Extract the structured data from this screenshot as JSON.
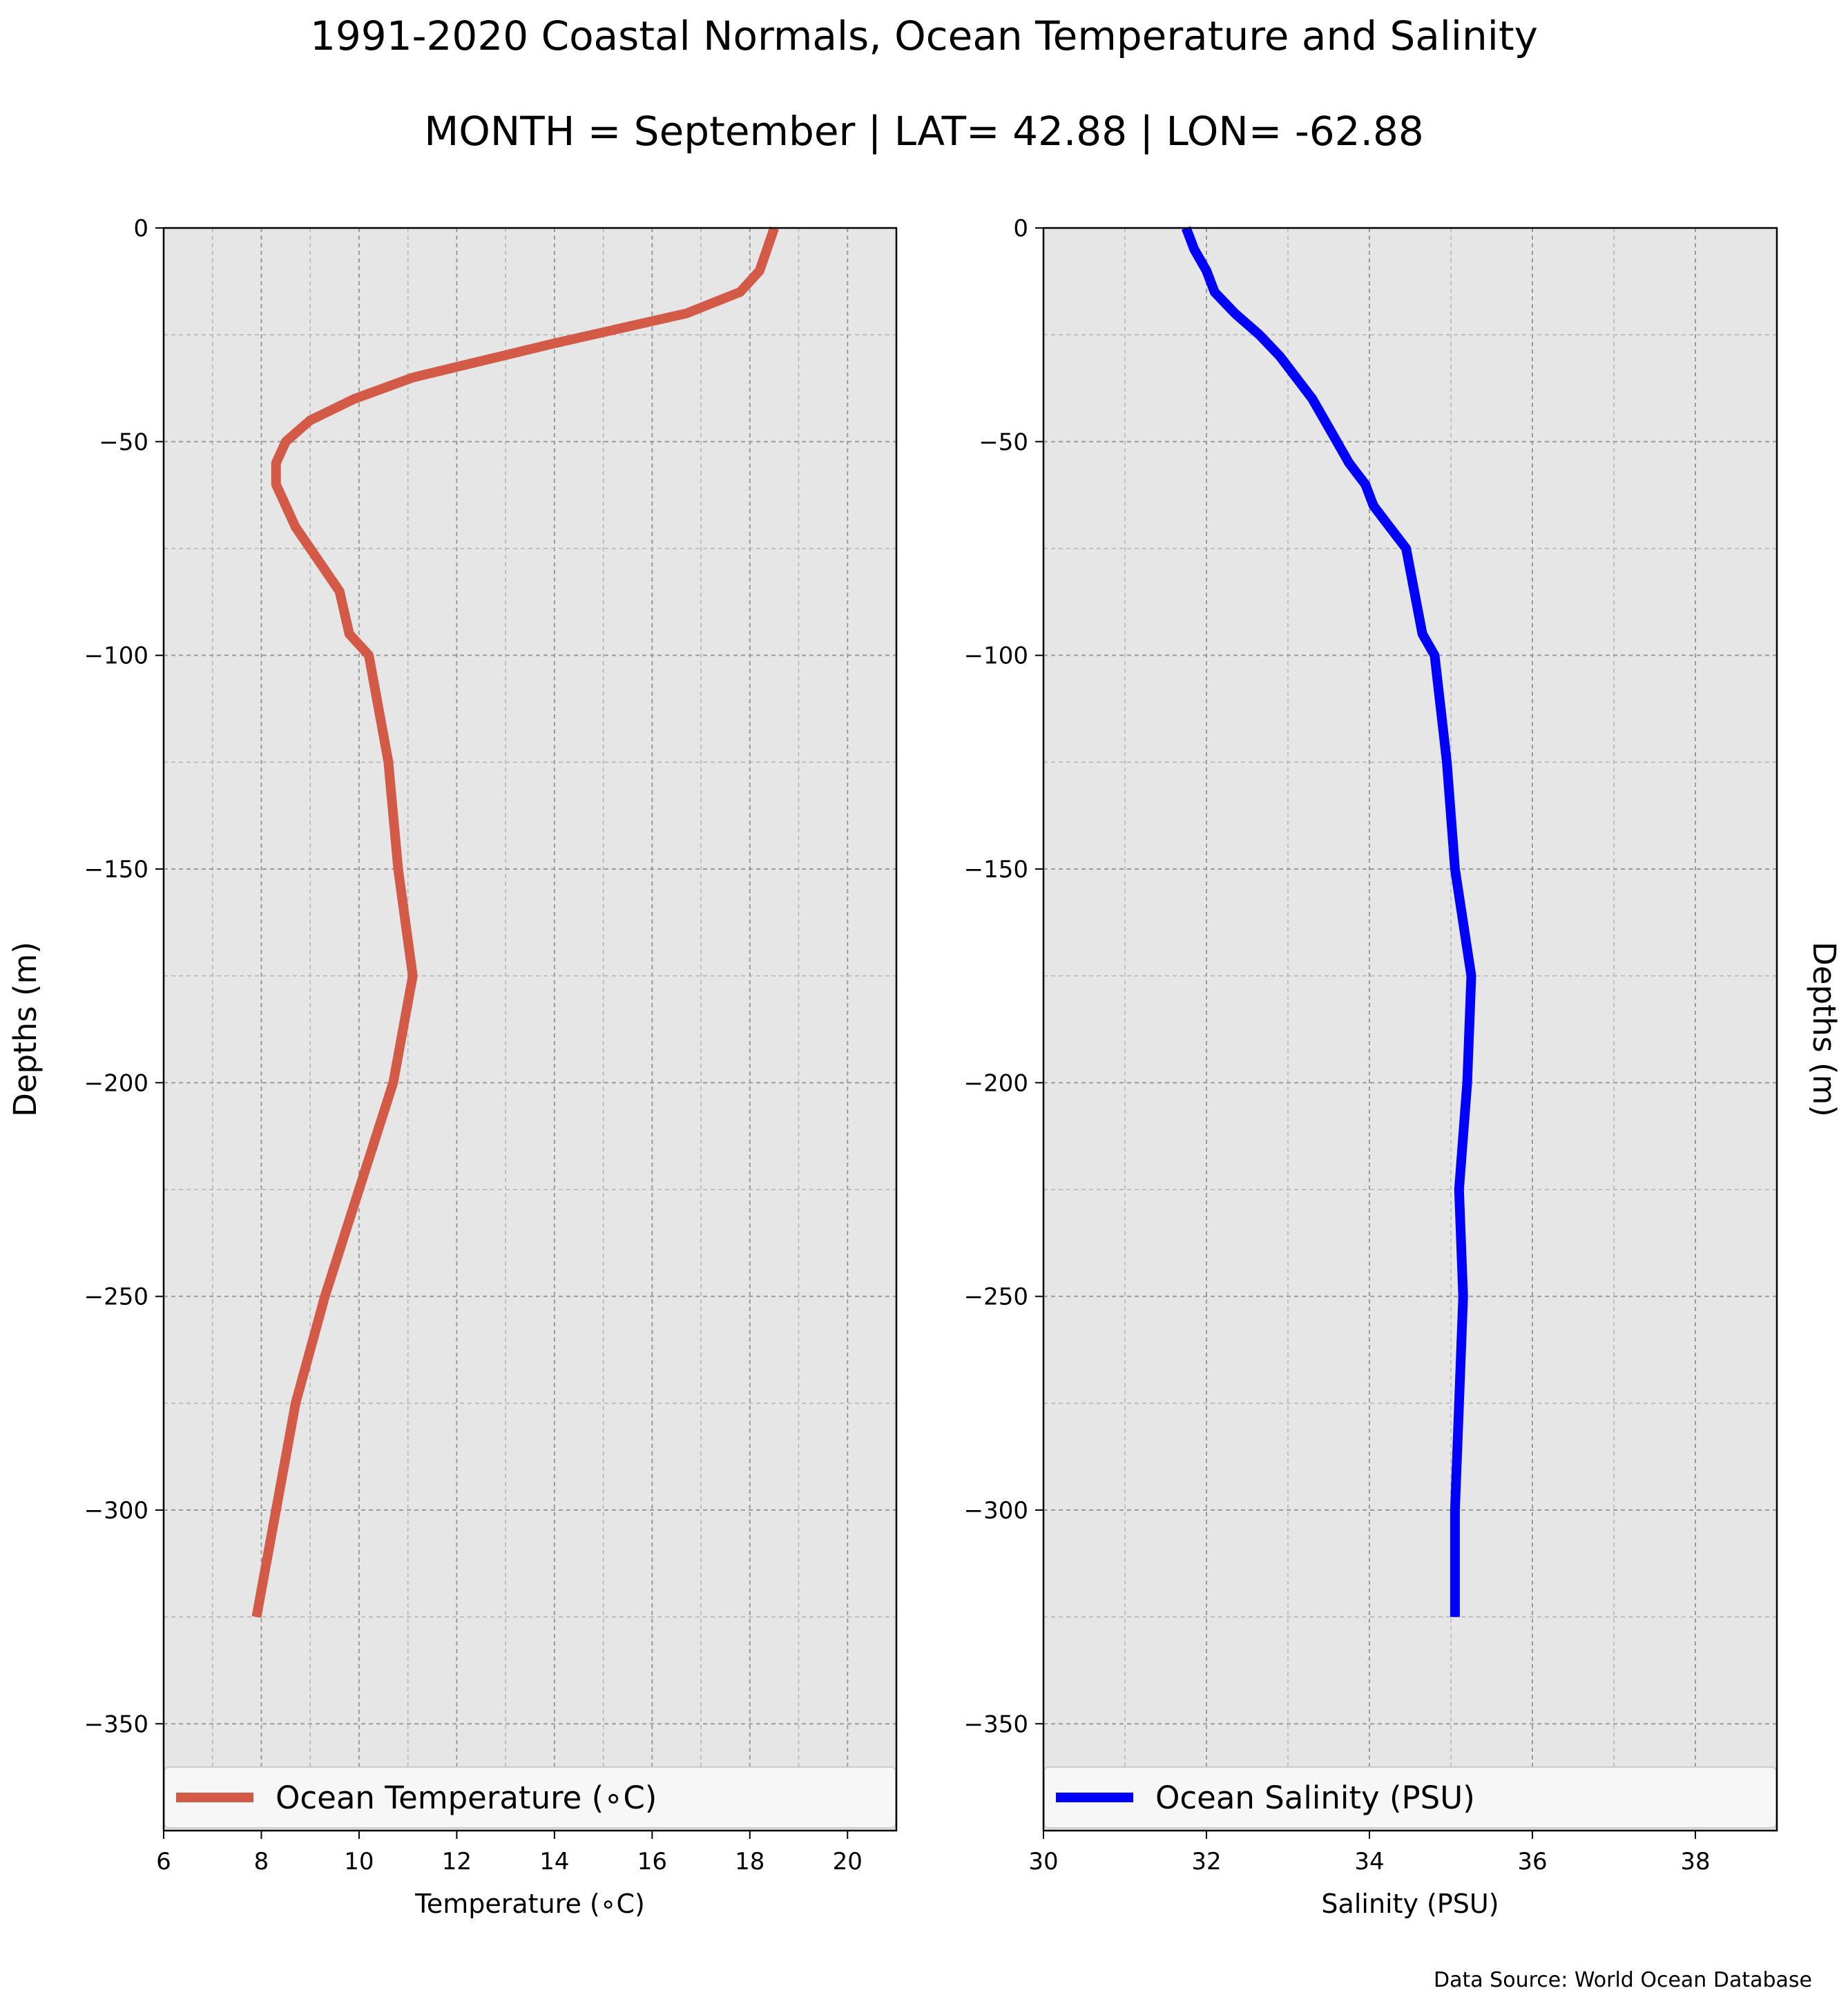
{
  "title": "1991-2020 Coastal Normals, Ocean Temperature and Salinity",
  "subtitle": "MONTH = September | LAT= 42.88 | LON= -62.88",
  "source": "Data Source: World Ocean Database",
  "chart_data": [
    {
      "type": "line",
      "xlabel": "Temperature (∘C)",
      "ylabel": "Depths (m)",
      "xlim": [
        6,
        21
      ],
      "ylim": [
        -375,
        0
      ],
      "xticks": [
        6,
        8,
        10,
        12,
        14,
        16,
        18,
        20
      ],
      "xtick_labels": [
        "6",
        "8",
        "10",
        "12",
        "14",
        "16",
        "18",
        "20"
      ],
      "yticks": [
        0,
        -50,
        -100,
        -150,
        -200,
        -250,
        -300,
        -350
      ],
      "ytick_labels": [
        "0",
        "−50",
        "−100",
        "−150",
        "−200",
        "−250",
        "−300",
        "−350"
      ],
      "grid": true,
      "legend": "lower center",
      "series": [
        {
          "name": "Ocean Temperature (∘C)",
          "color": "#d45a48",
          "x": [
            18.5,
            18.2,
            17.8,
            16.7,
            14.0,
            11.1,
            9.9,
            9.0,
            8.5,
            8.3,
            8.3,
            8.7,
            9.0,
            9.3,
            9.6,
            9.8,
            10.2,
            10.6,
            10.8,
            11.1,
            10.7,
            10.0,
            9.3,
            8.7,
            8.3,
            7.9
          ],
          "y": [
            0,
            -10,
            -15,
            -20,
            -27,
            -35,
            -40,
            -45,
            -50,
            -55,
            -60,
            -70,
            -75,
            -80,
            -85,
            -95,
            -100,
            -125,
            -150,
            -175,
            -200,
            -225,
            -250,
            -275,
            -300,
            -325
          ]
        }
      ]
    },
    {
      "type": "line",
      "xlabel": "Salinity (PSU)",
      "ylabel": "Depths (m)",
      "xlim": [
        30,
        39
      ],
      "ylim": [
        -375,
        0
      ],
      "xticks": [
        30,
        32,
        34,
        36,
        38
      ],
      "xtick_labels": [
        "30",
        "32",
        "34",
        "36",
        "38"
      ],
      "yticks": [
        0,
        -50,
        -100,
        -150,
        -200,
        -250,
        -300,
        -350
      ],
      "ytick_labels": [
        "0",
        "−50",
        "−100",
        "−150",
        "−200",
        "−250",
        "−300",
        "−350"
      ],
      "grid": true,
      "legend": "lower center",
      "series": [
        {
          "name": "Ocean Salinity (PSU)",
          "color": "#0000ff",
          "x": [
            31.75,
            31.85,
            32.0,
            32.1,
            32.35,
            32.65,
            32.9,
            33.1,
            33.3,
            33.45,
            33.6,
            33.75,
            33.95,
            34.05,
            34.25,
            34.45,
            34.5,
            34.55,
            34.65,
            34.8,
            34.95,
            35.05,
            35.25,
            35.2,
            35.1,
            35.15,
            35.1,
            35.05,
            35.05
          ],
          "y": [
            0,
            -5,
            -10,
            -15,
            -20,
            -25,
            -30,
            -35,
            -40,
            -45,
            -50,
            -55,
            -60,
            -65,
            -70,
            -75,
            -80,
            -85,
            -95,
            -100,
            -125,
            -150,
            -175,
            -200,
            -225,
            -250,
            -275,
            -300,
            -325
          ]
        }
      ]
    }
  ]
}
